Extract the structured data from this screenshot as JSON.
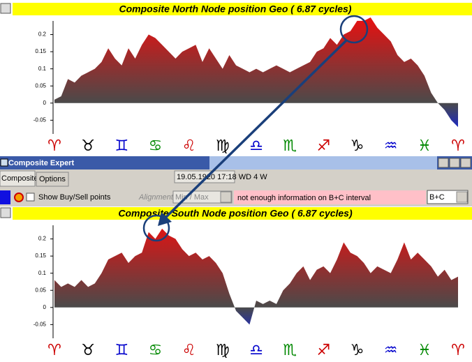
{
  "chart_data": [
    {
      "type": "area",
      "title": "Composite North Node position Geo  ( 6.87 cycles)",
      "x": [
        0,
        6,
        12,
        18,
        24,
        30,
        36,
        42,
        48,
        54,
        60,
        66,
        72,
        78,
        84,
        90,
        96,
        102,
        108,
        114,
        120,
        126,
        132,
        138,
        144,
        150,
        156,
        162,
        168,
        174,
        180,
        186,
        192,
        198,
        204,
        210,
        216,
        222,
        228,
        234,
        240,
        246,
        252,
        258,
        264,
        270,
        276,
        282,
        288,
        294,
        300,
        306,
        312,
        318,
        324,
        330,
        336,
        342,
        348,
        354,
        360
      ],
      "values": [
        0.01,
        0.02,
        0.07,
        0.06,
        0.08,
        0.09,
        0.1,
        0.12,
        0.16,
        0.13,
        0.11,
        0.16,
        0.13,
        0.17,
        0.2,
        0.19,
        0.17,
        0.15,
        0.13,
        0.15,
        0.16,
        0.17,
        0.12,
        0.16,
        0.13,
        0.1,
        0.14,
        0.11,
        0.1,
        0.09,
        0.1,
        0.09,
        0.1,
        0.11,
        0.1,
        0.09,
        0.1,
        0.11,
        0.12,
        0.15,
        0.16,
        0.19,
        0.17,
        0.2,
        0.21,
        0.24,
        0.24,
        0.25,
        0.22,
        0.2,
        0.18,
        0.14,
        0.12,
        0.13,
        0.11,
        0.08,
        0.03,
        0,
        -0.02,
        -0.05,
        -0.07
      ],
      "xlim": [
        0,
        360
      ],
      "ylim": [
        -0.09,
        0.25
      ],
      "yticks": [
        -0.05,
        0,
        0.05,
        0.1,
        0.15,
        0.2
      ],
      "xticks": [
        {
          "value": 0,
          "label": "♈"
        },
        {
          "value": 30,
          "label": "♉"
        },
        {
          "value": 60,
          "label": "♊"
        },
        {
          "value": 90,
          "label": "♋"
        },
        {
          "value": 120,
          "label": "♌"
        },
        {
          "value": 150,
          "label": "♍"
        },
        {
          "value": 180,
          "label": "♎"
        },
        {
          "value": 210,
          "label": "♏"
        },
        {
          "value": 240,
          "label": "♐"
        },
        {
          "value": 270,
          "label": "♑"
        },
        {
          "value": 300,
          "label": "♒"
        },
        {
          "value": 330,
          "label": "♓"
        },
        {
          "value": 360,
          "label": "♈"
        }
      ],
      "xtick_colors": [
        "#cc0000",
        "#000000",
        "#0000cc",
        "#008800",
        "#cc0000",
        "#000000",
        "#0000cc",
        "#008800",
        "#cc0000",
        "#000000",
        "#0000cc",
        "#008800",
        "#cc0000"
      ],
      "colors": {
        "positive": "#e81010",
        "zero": "#4a4a4a",
        "negative": "#1020e0"
      }
    },
    {
      "type": "area",
      "title": "Composite South Node position Geo  ( 6.87 cycles)",
      "x": [
        0,
        6,
        12,
        18,
        24,
        30,
        36,
        42,
        48,
        54,
        60,
        66,
        72,
        78,
        84,
        90,
        96,
        102,
        108,
        114,
        120,
        126,
        132,
        138,
        144,
        150,
        156,
        162,
        168,
        174,
        180,
        186,
        192,
        198,
        204,
        210,
        216,
        222,
        228,
        234,
        240,
        246,
        252,
        258,
        264,
        270,
        276,
        282,
        288,
        294,
        300,
        306,
        312,
        318,
        324,
        330,
        336,
        342,
        348,
        354,
        360
      ],
      "values": [
        0.08,
        0.06,
        0.07,
        0.06,
        0.08,
        0.06,
        0.07,
        0.1,
        0.14,
        0.15,
        0.16,
        0.13,
        0.15,
        0.16,
        0.22,
        0.2,
        0.23,
        0.21,
        0.2,
        0.17,
        0.15,
        0.16,
        0.14,
        0.15,
        0.13,
        0.1,
        0.04,
        -0.01,
        -0.03,
        -0.05,
        0.02,
        0.01,
        0.02,
        0.01,
        0.05,
        0.07,
        0.1,
        0.12,
        0.08,
        0.11,
        0.12,
        0.1,
        0.14,
        0.19,
        0.16,
        0.15,
        0.13,
        0.1,
        0.12,
        0.11,
        0.1,
        0.14,
        0.19,
        0.14,
        0.16,
        0.14,
        0.12,
        0.09,
        0.11,
        0.08,
        0.09
      ],
      "xlim": [
        0,
        360
      ],
      "ylim": [
        -0.09,
        0.25
      ],
      "yticks": [
        -0.05,
        0,
        0.05,
        0.1,
        0.15,
        0.2
      ],
      "xticks": [
        {
          "value": 0,
          "label": "♈"
        },
        {
          "value": 30,
          "label": "♉"
        },
        {
          "value": 60,
          "label": "♊"
        },
        {
          "value": 90,
          "label": "♋"
        },
        {
          "value": 120,
          "label": "♌"
        },
        {
          "value": 150,
          "label": "♍"
        },
        {
          "value": 180,
          "label": "♎"
        },
        {
          "value": 210,
          "label": "♏"
        },
        {
          "value": 240,
          "label": "♐"
        },
        {
          "value": 270,
          "label": "♑"
        },
        {
          "value": 300,
          "label": "♒"
        },
        {
          "value": 330,
          "label": "♓"
        },
        {
          "value": 360,
          "label": "♈"
        }
      ],
      "xtick_colors": [
        "#cc0000",
        "#000000",
        "#0000cc",
        "#008800",
        "#cc0000",
        "#000000",
        "#0000cc",
        "#008800",
        "#cc0000",
        "#000000",
        "#0000cc",
        "#008800",
        "#cc0000"
      ],
      "colors": {
        "positive": "#e81010",
        "zero": "#4a4a4a",
        "negative": "#1020e0"
      }
    }
  ],
  "window": {
    "title": "Composite Expert",
    "tabs": [
      "Composite",
      "Options"
    ],
    "date": "19.05.1920  17:18 WD  4 W",
    "checkbox_label": "Show Buy/Sell points",
    "alignment_label": "Alignment",
    "alignment_value": "Min / Max",
    "message": "not enough information on B+C interval",
    "interval_value": "B+C"
  }
}
